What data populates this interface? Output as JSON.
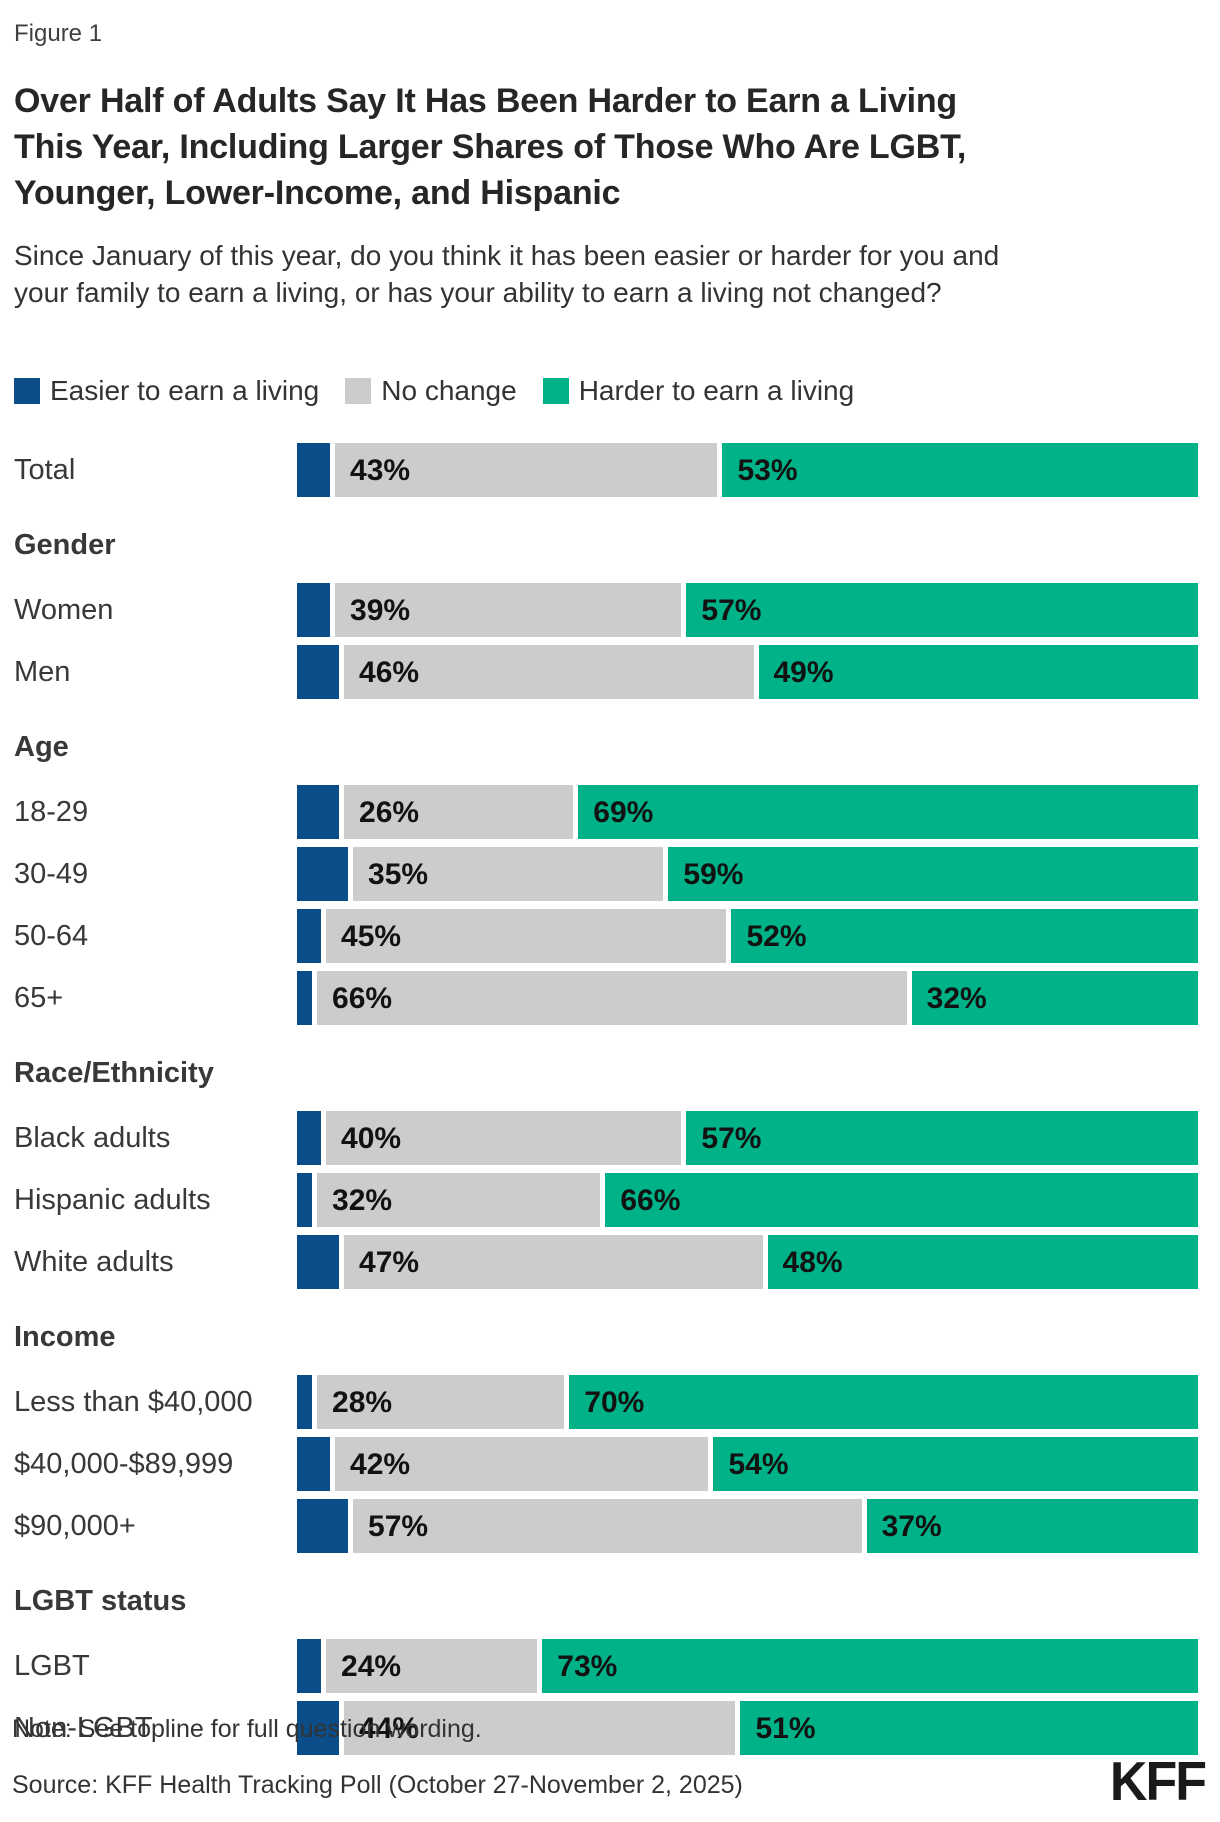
{
  "figure_label": "Figure 1",
  "title": "Over Half of Adults Say It Has Been Harder to Earn a Living This Year, Including Larger Shares of Those Who Are LGBT, Younger, Lower-Income, and Hispanic",
  "question": "Since January of this year, do you think it has been easier or harder for you and your family to earn a living, or has your ability to earn a living not changed?",
  "note": "Note: See topline for full question wording.",
  "source": "Source: KFF Health Tracking Poll (October 27-November 2, 2025)",
  "logo_text": "KFF",
  "colors": {
    "easier": "#0b4d89",
    "no_change": "#cccccc",
    "harder": "#00b287"
  },
  "legend": [
    {
      "key": "easier",
      "label": "Easier to earn a living",
      "color": "#0b4d89"
    },
    {
      "key": "no_change",
      "label": "No change",
      "color": "#cccccc"
    },
    {
      "key": "harder",
      "label": "Harder to earn a living",
      "color": "#00b287"
    }
  ],
  "chart_data": {
    "type": "bar",
    "orientation": "horizontal-stacked",
    "xlim": [
      0,
      100
    ],
    "unit": "%",
    "label_suffix": "%",
    "grid": false,
    "legend_position": "top",
    "series_order": [
      "easier",
      "no_change",
      "harder"
    ],
    "labeled_series": [
      "no_change",
      "harder"
    ],
    "easier_note": "easier segment widths are drawn but not labeled in the figure; values inferred as 100 minus labeled shares",
    "groups": [
      {
        "header": null,
        "rows": [
          {
            "label": "Total",
            "easier": 4,
            "no_change": 43,
            "harder": 53
          }
        ]
      },
      {
        "header": "Gender",
        "rows": [
          {
            "label": "Women",
            "easier": 4,
            "no_change": 39,
            "harder": 57
          },
          {
            "label": "Men",
            "easier": 5,
            "no_change": 46,
            "harder": 49
          }
        ]
      },
      {
        "header": "Age",
        "rows": [
          {
            "label": "18-29",
            "easier": 5,
            "no_change": 26,
            "harder": 69
          },
          {
            "label": "30-49",
            "easier": 6,
            "no_change": 35,
            "harder": 59
          },
          {
            "label": "50-64",
            "easier": 3,
            "no_change": 45,
            "harder": 52
          },
          {
            "label": "65+",
            "easier": 2,
            "no_change": 66,
            "harder": 32
          }
        ]
      },
      {
        "header": "Race/Ethnicity",
        "rows": [
          {
            "label": "Black adults",
            "easier": 3,
            "no_change": 40,
            "harder": 57
          },
          {
            "label": "Hispanic adults",
            "easier": 2,
            "no_change": 32,
            "harder": 66
          },
          {
            "label": "White adults",
            "easier": 5,
            "no_change": 47,
            "harder": 48
          }
        ]
      },
      {
        "header": "Income",
        "rows": [
          {
            "label": "Less than $40,000",
            "easier": 2,
            "no_change": 28,
            "harder": 70
          },
          {
            "label": "$40,000-$89,999",
            "easier": 4,
            "no_change": 42,
            "harder": 54
          },
          {
            "label": "$90,000+",
            "easier": 6,
            "no_change": 57,
            "harder": 37
          }
        ]
      },
      {
        "header": "LGBT status",
        "rows": [
          {
            "label": "LGBT",
            "easier": 3,
            "no_change": 24,
            "harder": 73
          },
          {
            "label": "Non-LGBT",
            "easier": 5,
            "no_change": 44,
            "harder": 51
          }
        ]
      }
    ]
  }
}
